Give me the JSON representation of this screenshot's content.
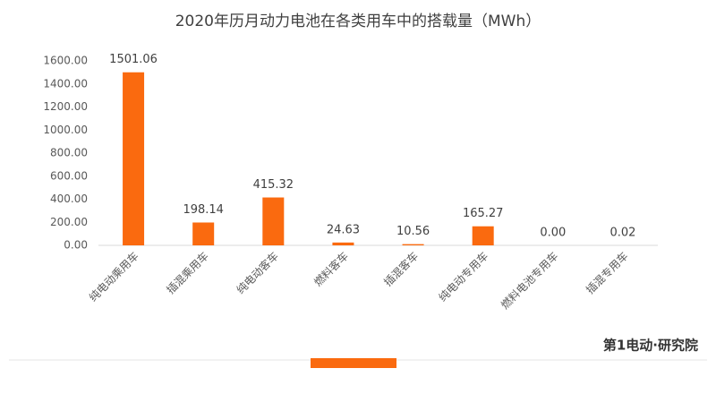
{
  "chart_data": {
    "type": "bar",
    "title": "2020年历月动力电池在各类用车中的搭载量（MWh）",
    "categories": [
      "纯电动乘用车",
      "插混乘用车",
      "纯电动客车",
      "燃料客车",
      "插混客车",
      "纯电动专用车",
      "燃料电池专用车",
      "插混专用车"
    ],
    "values": [
      1501.06,
      198.14,
      415.32,
      24.63,
      10.56,
      165.27,
      0,
      0.02
    ],
    "value_labels": [
      "1501.06",
      "198.14",
      "415.32",
      "24.63",
      "10.56",
      "165.27",
      "0.00",
      "0.02"
    ],
    "color": "#fa6a0f",
    "ylim": [
      0,
      1600
    ],
    "yticks": [
      {
        "value": 0,
        "label": "0.00"
      },
      {
        "value": 200,
        "label": "200.00"
      },
      {
        "value": 400,
        "label": "400.00"
      },
      {
        "value": 600,
        "label": "600.00"
      },
      {
        "value": 800,
        "label": "800.00"
      },
      {
        "value": 1000,
        "label": "1000.00"
      },
      {
        "value": 1200,
        "label": "1200.00"
      },
      {
        "value": 1400,
        "label": "1400.00"
      },
      {
        "value": 1600,
        "label": "1600.00"
      }
    ],
    "grid": false,
    "watermark": "第1电动·研究院"
  }
}
